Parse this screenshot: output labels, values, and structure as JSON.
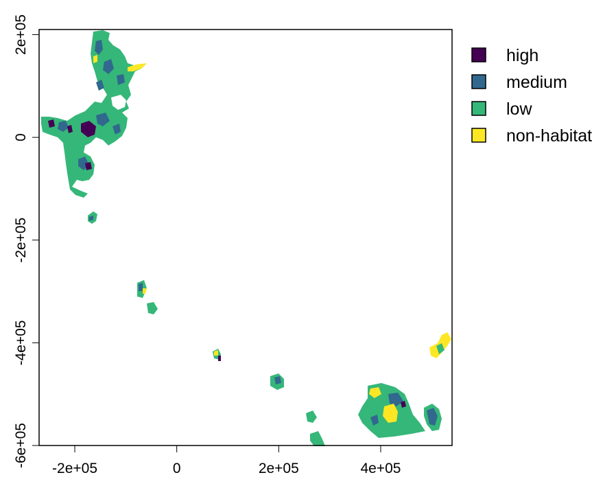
{
  "legend": {
    "items": [
      {
        "label": "high",
        "color": "#440154"
      },
      {
        "label": "medium",
        "color": "#31688E"
      },
      {
        "label": "low",
        "color": "#35B779"
      },
      {
        "label": "non-habitat",
        "color": "#FDE725"
      }
    ]
  },
  "axes": {
    "x_ticks": [
      "-2e+05",
      "0",
      "2e+05",
      "4e+05"
    ],
    "y_ticks": [
      "2e+05",
      "0",
      "-2e+05",
      "-4e+05",
      "-6e+05"
    ]
  },
  "chart_data": {
    "type": "map",
    "xlim": [
      -270000,
      540000
    ],
    "ylim": [
      -600000,
      210000
    ],
    "x_ticks": [
      -200000,
      0,
      200000,
      400000
    ],
    "y_ticks": [
      200000,
      0,
      -200000,
      -400000,
      -600000
    ],
    "categories": [
      "high",
      "medium",
      "low",
      "non-habitat"
    ],
    "colors": {
      "high": "#440154",
      "medium": "#31688E",
      "low": "#35B779",
      "non-habitat": "#FDE725"
    },
    "legend_position": "right",
    "box": true,
    "grid": false
  }
}
